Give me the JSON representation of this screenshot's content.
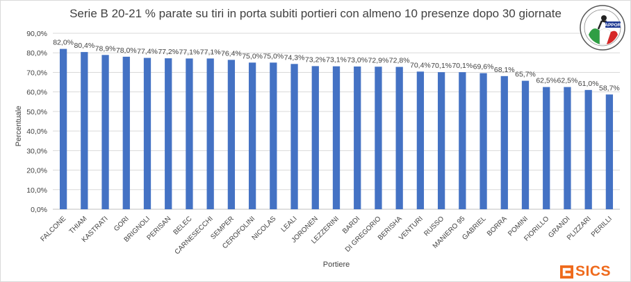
{
  "chart_data": {
    "type": "bar",
    "title": "Serie B 20-21 % parate su tiri in porta subiti portieri con almeno 10 presenze dopo 30 giornate",
    "xlabel": "Portiere",
    "ylabel": "Percentuale",
    "ylim": [
      0,
      90
    ],
    "yticks": [
      "0,0%",
      "10,0%",
      "20,0%",
      "30,0%",
      "40,0%",
      "50,0%",
      "60,0%",
      "70,0%",
      "80,0%",
      "90,0%"
    ],
    "grid": true,
    "bar_color": "#4472c4",
    "categories": [
      "FALCONE",
      "THIAM",
      "KASTRATI",
      "GORI",
      "BRIGNOLI",
      "PERISAN",
      "BELEC",
      "CARNESECCHI",
      "SEMPER",
      "CEROFOLINI",
      "NICOLAS",
      "LEALI",
      "JORONEN",
      "LEZZERINI",
      "BARDI",
      "DI GREGORIO",
      "BERISHA",
      "VENTURI",
      "RUSSO",
      "MANIERO 95",
      "GABRIEL",
      "BORRA",
      "POMINI",
      "FIORILLO",
      "GRANDI",
      "PLIZZARI",
      "PERILLI"
    ],
    "values": [
      82.0,
      80.4,
      78.9,
      78.0,
      77.4,
      77.2,
      77.1,
      77.1,
      76.4,
      75.0,
      75.0,
      74.3,
      73.2,
      73.1,
      73.0,
      72.9,
      72.8,
      70.4,
      70.1,
      70.1,
      69.6,
      68.1,
      65.7,
      62.5,
      62.5,
      61.0,
      58.7
    ],
    "data_labels": [
      "82,0%",
      "80,4%",
      "78,9%",
      "78,0%",
      "77,4%",
      "77,2%",
      "77,1%",
      "77,1%",
      "76,4%",
      "75,0%",
      "75,0%",
      "74,3%",
      "73,2%",
      "73,1%",
      "73,0%",
      "72,9%",
      "72,8%",
      "70,4%",
      "70,1%",
      "70,1%",
      "69,6%",
      "68,1%",
      "65,7%",
      "62,5%",
      "62,5%",
      "61,0%",
      "58,7%"
    ]
  },
  "branding": {
    "badge_text": "FAPPORT",
    "sics_text": "SICS",
    "sics_color": "#ef6a1c"
  }
}
